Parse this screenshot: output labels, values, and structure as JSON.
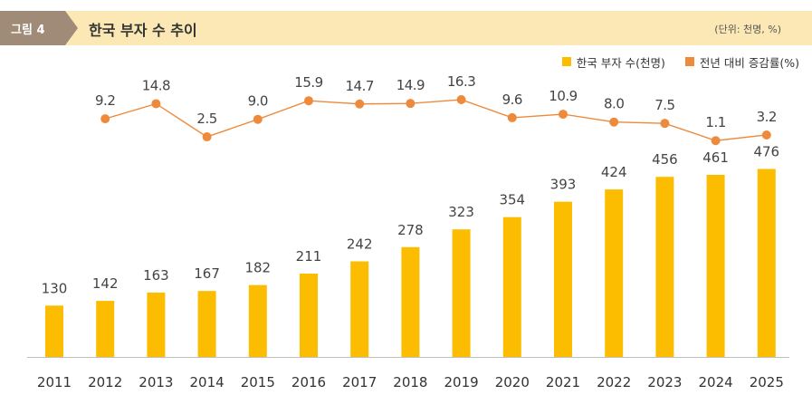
{
  "header": {
    "figure_label": "그림 4",
    "title": "한국 부자 수 추이",
    "unit": "(단위: 천명, %)"
  },
  "legend": {
    "bar_label": "한국 부자 수(천명)",
    "line_label": "전년 대비 증감률(%)"
  },
  "colors": {
    "bar": "#fcbd00",
    "line": "#ee8a3c",
    "header_bg": "#fbe8b4",
    "tag_bg": "#a08b78"
  },
  "chart_data": {
    "type": "bar",
    "title": "한국 부자 수 추이",
    "categories": [
      "2011",
      "2012",
      "2013",
      "2014",
      "2015",
      "2016",
      "2017",
      "2018",
      "2019",
      "2020",
      "2021",
      "2022",
      "2023",
      "2024",
      "2025"
    ],
    "series": [
      {
        "name": "한국 부자 수(천명)",
        "type": "bar",
        "values": [
          130,
          142,
          163,
          167,
          182,
          211,
          242,
          278,
          323,
          354,
          393,
          424,
          456,
          461,
          476
        ]
      },
      {
        "name": "전년 대비 증감률(%)",
        "type": "line",
        "values": [
          null,
          9.2,
          14.8,
          2.5,
          9.0,
          15.9,
          14.7,
          14.9,
          16.3,
          9.6,
          10.9,
          8.0,
          7.5,
          1.1,
          3.2
        ]
      }
    ],
    "bar_ylim": [
      0,
      500
    ],
    "line_ylim": [
      0,
      16.3
    ],
    "xlabel": "",
    "ylabel": ""
  }
}
